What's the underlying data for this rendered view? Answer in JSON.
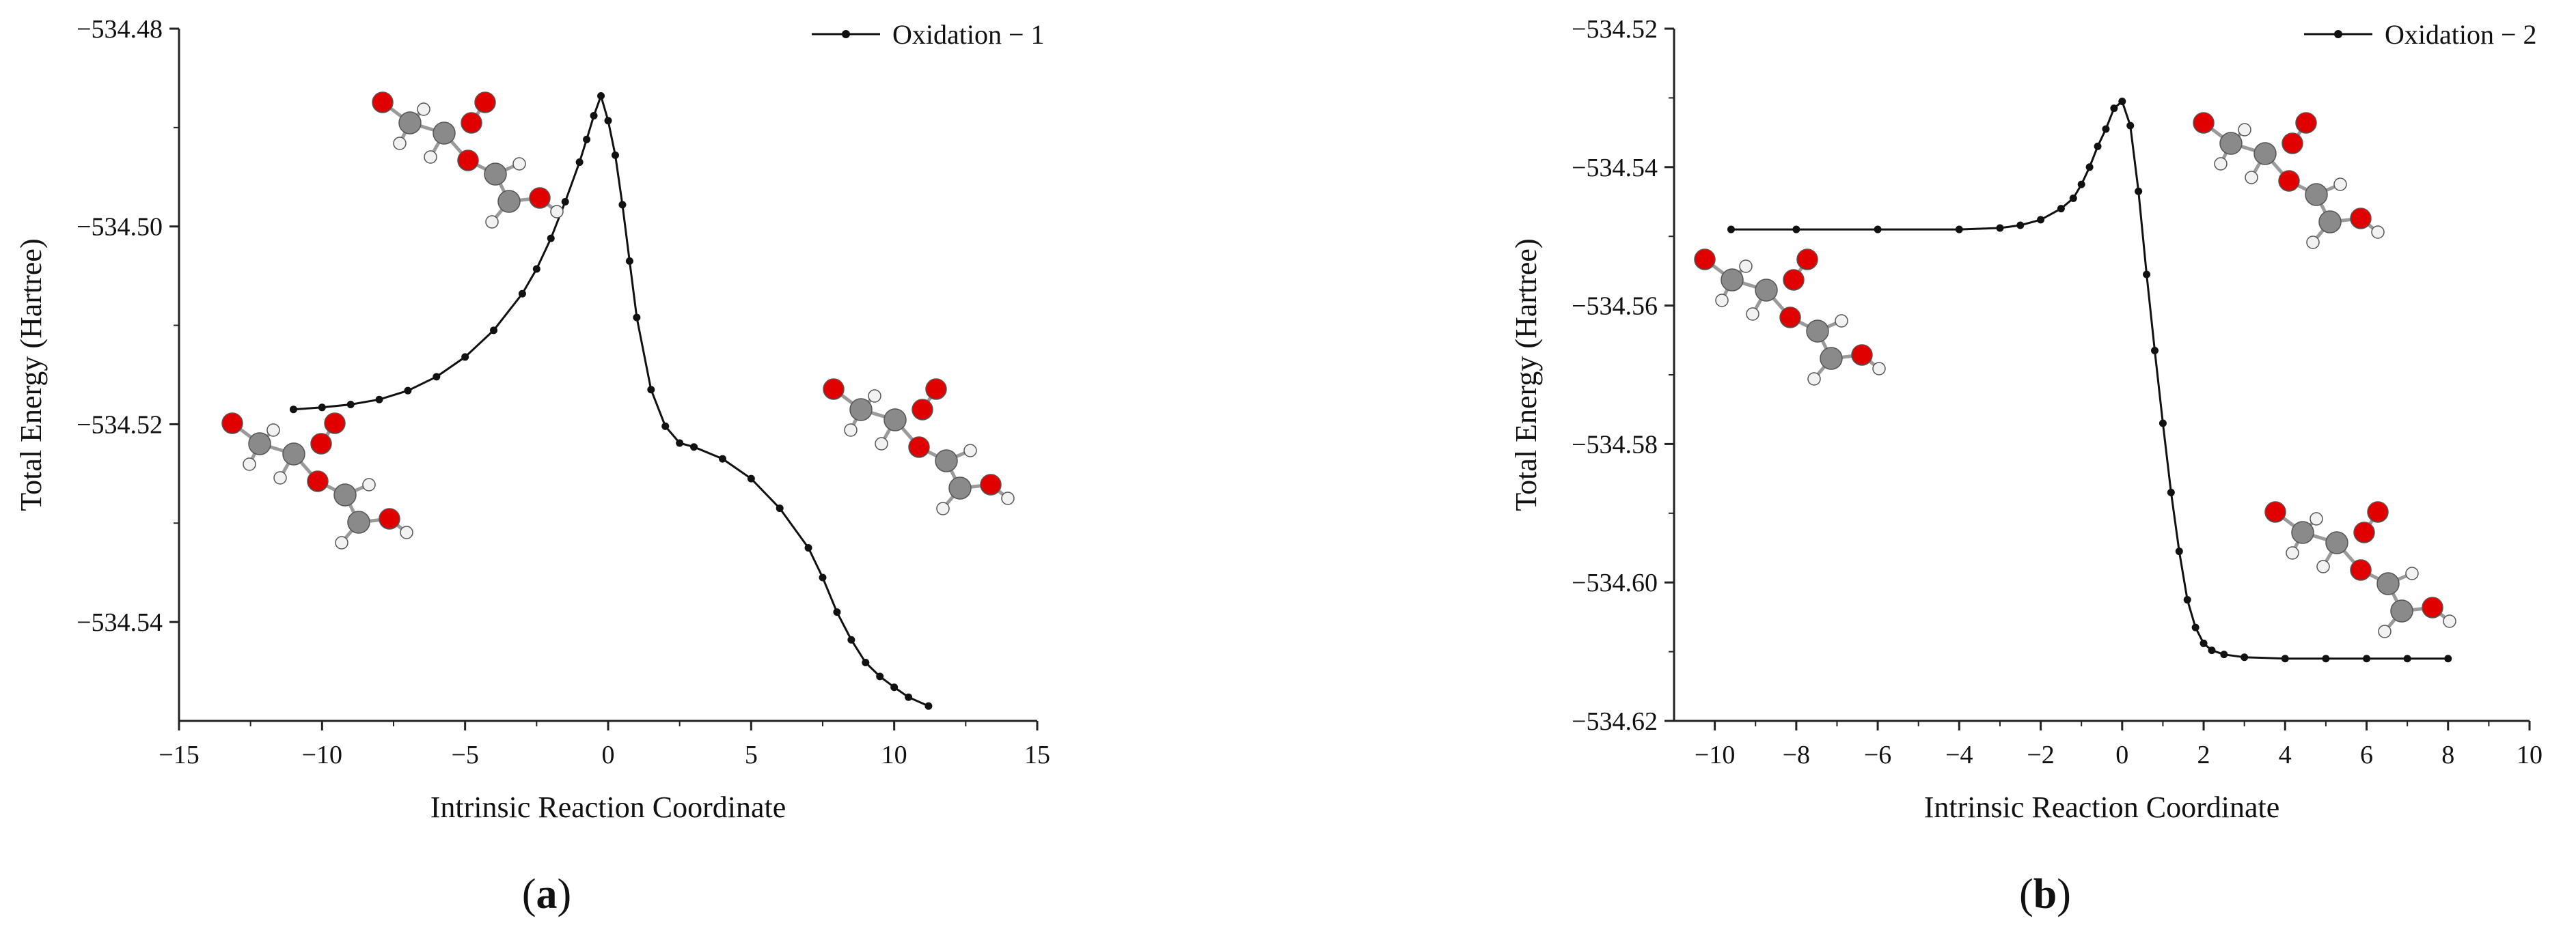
{
  "colors": {
    "line": "#111111",
    "oxygen": "#e00000",
    "carbon": "#8a8a8a",
    "hydrogen": "#f2f2f2"
  },
  "icons": [
    "molecule-structure-icon"
  ],
  "chart_data": [
    {
      "type": "line",
      "panel_label": "a",
      "xlabel": "Intrinsic Reaction Coordinate",
      "ylabel": "Total Energy (Hartree)",
      "xlim": [
        -15,
        15
      ],
      "ylim": [
        -534.55,
        -534.48
      ],
      "xticks": [
        -15,
        -10,
        -5,
        0,
        5,
        10,
        15
      ],
      "xtick_labels": [
        "−15",
        "−10",
        "−5",
        "0",
        "5",
        "10",
        "15"
      ],
      "yticks": [
        -534.48,
        -534.5,
        -534.52,
        -534.54
      ],
      "ytick_labels": [
        "−534.48",
        "−534.50",
        "−534.52",
        "−534.54"
      ],
      "legend": "top-right",
      "grid": false,
      "series": [
        {
          "name": "Oxidation − 1",
          "marker": "circle",
          "x": [
            -11,
            -10,
            -9,
            -8,
            -7,
            -6,
            -5,
            -4,
            -3,
            -2.5,
            -2,
            -1.5,
            -1,
            -0.75,
            -0.5,
            -0.25,
            0,
            0.25,
            0.5,
            0.75,
            1,
            1.5,
            2,
            2.5,
            3,
            4,
            5,
            6,
            7,
            7.5,
            8,
            8.5,
            9,
            9.5,
            10,
            10.5,
            11.2
          ],
          "y": [
            -534.5185,
            -534.5183,
            -534.518,
            -534.5175,
            -534.5166,
            -534.5152,
            -534.5132,
            -534.5105,
            -534.5068,
            -534.5043,
            -534.5012,
            -534.4975,
            -534.4935,
            -534.4912,
            -534.4888,
            -534.4868,
            -534.4893,
            -534.4928,
            -534.4978,
            -534.5035,
            -534.5092,
            -534.5165,
            -534.5202,
            -534.5219,
            -534.5223,
            -534.5235,
            -534.5255,
            -534.5285,
            -534.5325,
            -534.5355,
            -534.539,
            -534.5418,
            -534.5441,
            -534.5455,
            -534.5466,
            -534.5476,
            -534.5485
          ]
        }
      ]
    },
    {
      "type": "line",
      "panel_label": "b",
      "xlabel": "Intrinsic Reaction Coordinate",
      "ylabel": "Total Energy (Hartree)",
      "xlim": [
        -11,
        10
      ],
      "ylim": [
        -534.62,
        -534.52
      ],
      "xticks": [
        -10,
        -8,
        -6,
        -4,
        -2,
        0,
        2,
        4,
        6,
        8,
        10
      ],
      "xtick_labels": [
        "−10",
        "−8",
        "−6",
        "−4",
        "−2",
        "0",
        "2",
        "4",
        "6",
        "8",
        "10"
      ],
      "yticks": [
        -534.52,
        -534.54,
        -534.56,
        -534.58,
        -534.6,
        -534.62
      ],
      "ytick_labels": [
        "−534.52",
        "−534.54",
        "−534.56",
        "−534.58",
        "−534.60",
        "−534.62"
      ],
      "legend": "top-right",
      "grid": false,
      "series": [
        {
          "name": "Oxidation − 2",
          "marker": "circle",
          "x": [
            -9.6,
            -8,
            -6,
            -4,
            -3,
            -2.5,
            -2,
            -1.5,
            -1.2,
            -1,
            -0.8,
            -0.6,
            -0.4,
            -0.2,
            0,
            0.2,
            0.4,
            0.6,
            0.8,
            1.0,
            1.2,
            1.4,
            1.6,
            1.8,
            2.0,
            2.2,
            2.5,
            3,
            4,
            5,
            6,
            7,
            8
          ],
          "y": [
            -534.549,
            -534.549,
            -534.549,
            -534.549,
            -534.5488,
            -534.5484,
            -534.5476,
            -534.546,
            -534.5445,
            -534.5425,
            -534.54,
            -534.537,
            -534.5345,
            -534.5315,
            -534.5305,
            -534.534,
            -534.5435,
            -534.5555,
            -534.5665,
            -534.577,
            -534.587,
            -534.5955,
            -534.6025,
            -534.6065,
            -534.6088,
            -534.6098,
            -534.6104,
            -534.6108,
            -534.611,
            -534.611,
            -534.611,
            -534.611,
            -534.611
          ]
        }
      ]
    }
  ]
}
